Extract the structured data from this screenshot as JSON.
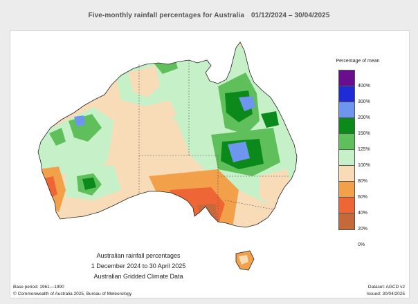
{
  "header": {
    "title": "Five-monthly rainfall percentages for Australia",
    "period": "01/12/2024 – 30/04/2025"
  },
  "legend": {
    "title": "Percentage of mean",
    "swatches": [
      {
        "color": "#6a0d8f"
      },
      {
        "color": "#1f2bd6"
      },
      {
        "color": "#6e96ee"
      },
      {
        "color": "#0b8a1b"
      },
      {
        "color": "#5fbf5a"
      },
      {
        "color": "#c6f0c8"
      },
      {
        "color": "#f7dcb7"
      },
      {
        "color": "#f3a04a"
      },
      {
        "color": "#ef6636"
      },
      {
        "color": "#c4693a"
      }
    ],
    "ticks": [
      "400%",
      "300%",
      "200%",
      "150%",
      "125%",
      "100%",
      "80%",
      "60%",
      "40%",
      "20%",
      "0%"
    ]
  },
  "caption": {
    "line1": "Australian rainfall percentages",
    "line2": "1 December 2024 to 30 April 2025",
    "line3": "Australian Gridded Climate Data"
  },
  "footer": {
    "base_period": "Base period: 1961—1990",
    "copyright": "© Commonwealth of Australia 2025, Bureau of Meteorology",
    "dataset": "Dataset: AGCD v2",
    "issued": "Issued: 30/04/2025"
  }
}
